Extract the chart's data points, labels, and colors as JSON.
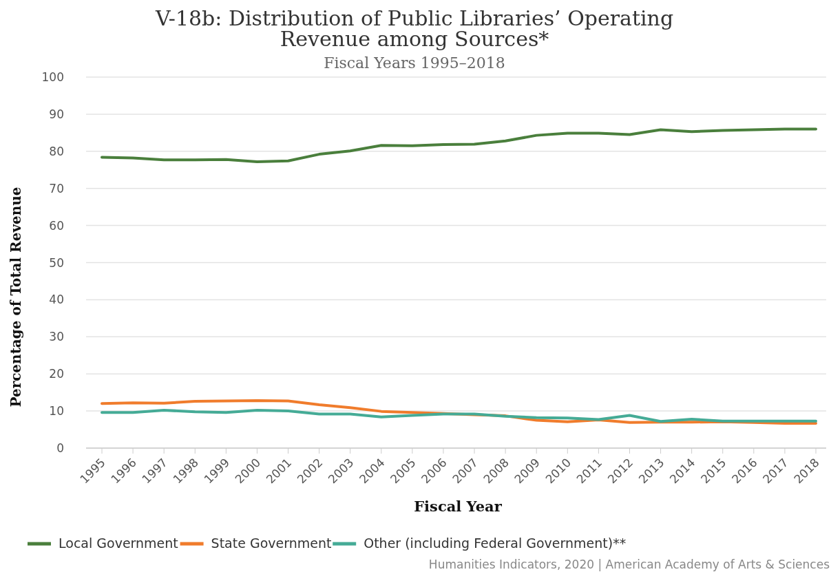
{
  "chart_data": {
    "type": "line",
    "title": "V-18b: Distribution of Public Libraries’ Operating Revenue among Sources*",
    "subtitle": "Fiscal Years 1995–2018",
    "xlabel": "Fiscal Year",
    "ylabel": "Percentage of Total Revenue",
    "categories": [
      "1995",
      "1996",
      "1997",
      "1998",
      "1999",
      "2000",
      "2001",
      "2002",
      "2003",
      "2004",
      "2005",
      "2006",
      "2007",
      "2008",
      "2009",
      "2010",
      "2011",
      "2012",
      "2013",
      "2014",
      "2015",
      "2016",
      "2017",
      "2018"
    ],
    "series": [
      {
        "name": "Local Government",
        "color": "#4a7f3c",
        "values": [
          78.4,
          78.2,
          77.7,
          77.7,
          77.8,
          77.2,
          77.4,
          79.2,
          80.1,
          81.6,
          81.5,
          81.8,
          81.9,
          82.8,
          84.3,
          84.9,
          84.9,
          84.5,
          85.8,
          85.3,
          85.6,
          85.8,
          86.0,
          86.0
        ]
      },
      {
        "name": "State Government",
        "color": "#f07c2c",
        "values": [
          12.0,
          12.2,
          12.1,
          12.6,
          12.7,
          12.8,
          12.7,
          11.7,
          10.9,
          9.9,
          9.6,
          9.3,
          9.0,
          8.7,
          7.5,
          7.1,
          7.6,
          6.9,
          7.0,
          7.0,
          7.1,
          6.9,
          6.7,
          6.7
        ]
      },
      {
        "name": "Other (including Federal Government)**",
        "color": "#45ab96",
        "values": [
          9.6,
          9.6,
          10.2,
          9.8,
          9.6,
          10.2,
          10.0,
          9.2,
          9.2,
          8.4,
          8.8,
          9.2,
          9.2,
          8.6,
          8.2,
          8.1,
          7.7,
          8.8,
          7.2,
          7.8,
          7.3,
          7.3,
          7.3,
          7.3
        ]
      }
    ],
    "ylim": [
      0,
      100
    ],
    "yticks": [
      0,
      10,
      20,
      30,
      40,
      50,
      60,
      70,
      80,
      90,
      100
    ],
    "grid": "y",
    "legend": "bottom",
    "marker": "none",
    "line_style": "solid",
    "annotations": [
      "Humanities Indicators, 2020 | American Academy of Arts & Sciences"
    ]
  }
}
